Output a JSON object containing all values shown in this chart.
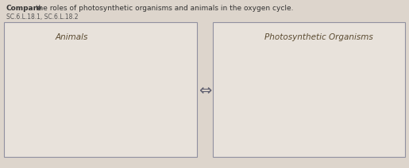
{
  "bg_color": "#ddd5cc",
  "title_bold": "Compare",
  "title_rest": " the roles of photosynthetic organisms and animals in the oxygen cycle.",
  "subtitle": "SC.6.L.18.1, SC.6.L.18.2",
  "box_color": "#e8e2db",
  "box_edge_color": "#9090a0",
  "left_label": "Animals",
  "right_label": "Photosynthetic Organisms",
  "label_color": "#5a4a30",
  "label_fontsize": 7.5,
  "title_fontsize": 6.5,
  "subtitle_fontsize": 5.5,
  "arrow_fontsize": 14,
  "title_color": "#333333",
  "subtitle_color": "#555555"
}
